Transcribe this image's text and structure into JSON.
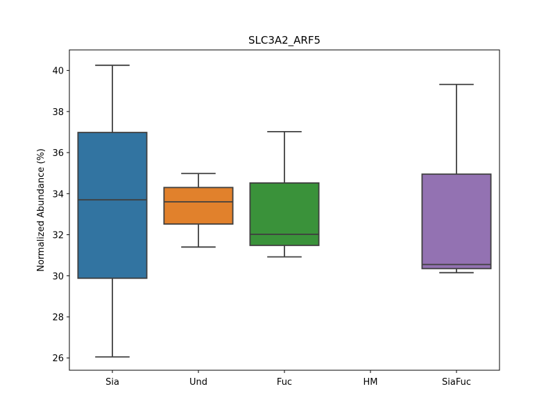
{
  "chart_data": {
    "type": "box",
    "title": "SLC3A2_ARF5",
    "xlabel": "",
    "ylabel": "Normalized Abundance (%)",
    "ylim": [
      25.4,
      41.0
    ],
    "yticks": [
      26,
      28,
      30,
      32,
      34,
      36,
      38,
      40
    ],
    "categories": [
      "Sia",
      "Und",
      "Fuc",
      "HM",
      "SiaFuc"
    ],
    "colors": [
      "#3274a1",
      "#e1812c",
      "#3a923a",
      "#c03d3e",
      "#9372b2"
    ],
    "boxes": [
      {
        "category": "Sia",
        "whisker_low": 26.05,
        "q1": 29.88,
        "median": 33.7,
        "q3": 36.98,
        "whisker_high": 40.25
      },
      {
        "category": "Und",
        "whisker_low": 31.4,
        "q1": 32.52,
        "median": 33.6,
        "q3": 34.3,
        "whisker_high": 34.98
      },
      {
        "category": "Fuc",
        "whisker_low": 30.92,
        "q1": 31.48,
        "median": 32.02,
        "q3": 34.52,
        "whisker_high": 37.02
      },
      {
        "category": "HM",
        "whisker_low": null,
        "q1": null,
        "median": null,
        "q3": null,
        "whisker_high": null
      },
      {
        "category": "SiaFuc",
        "whisker_low": 30.15,
        "q1": 30.35,
        "median": 30.55,
        "q3": 34.95,
        "whisker_high": 39.32
      }
    ]
  }
}
